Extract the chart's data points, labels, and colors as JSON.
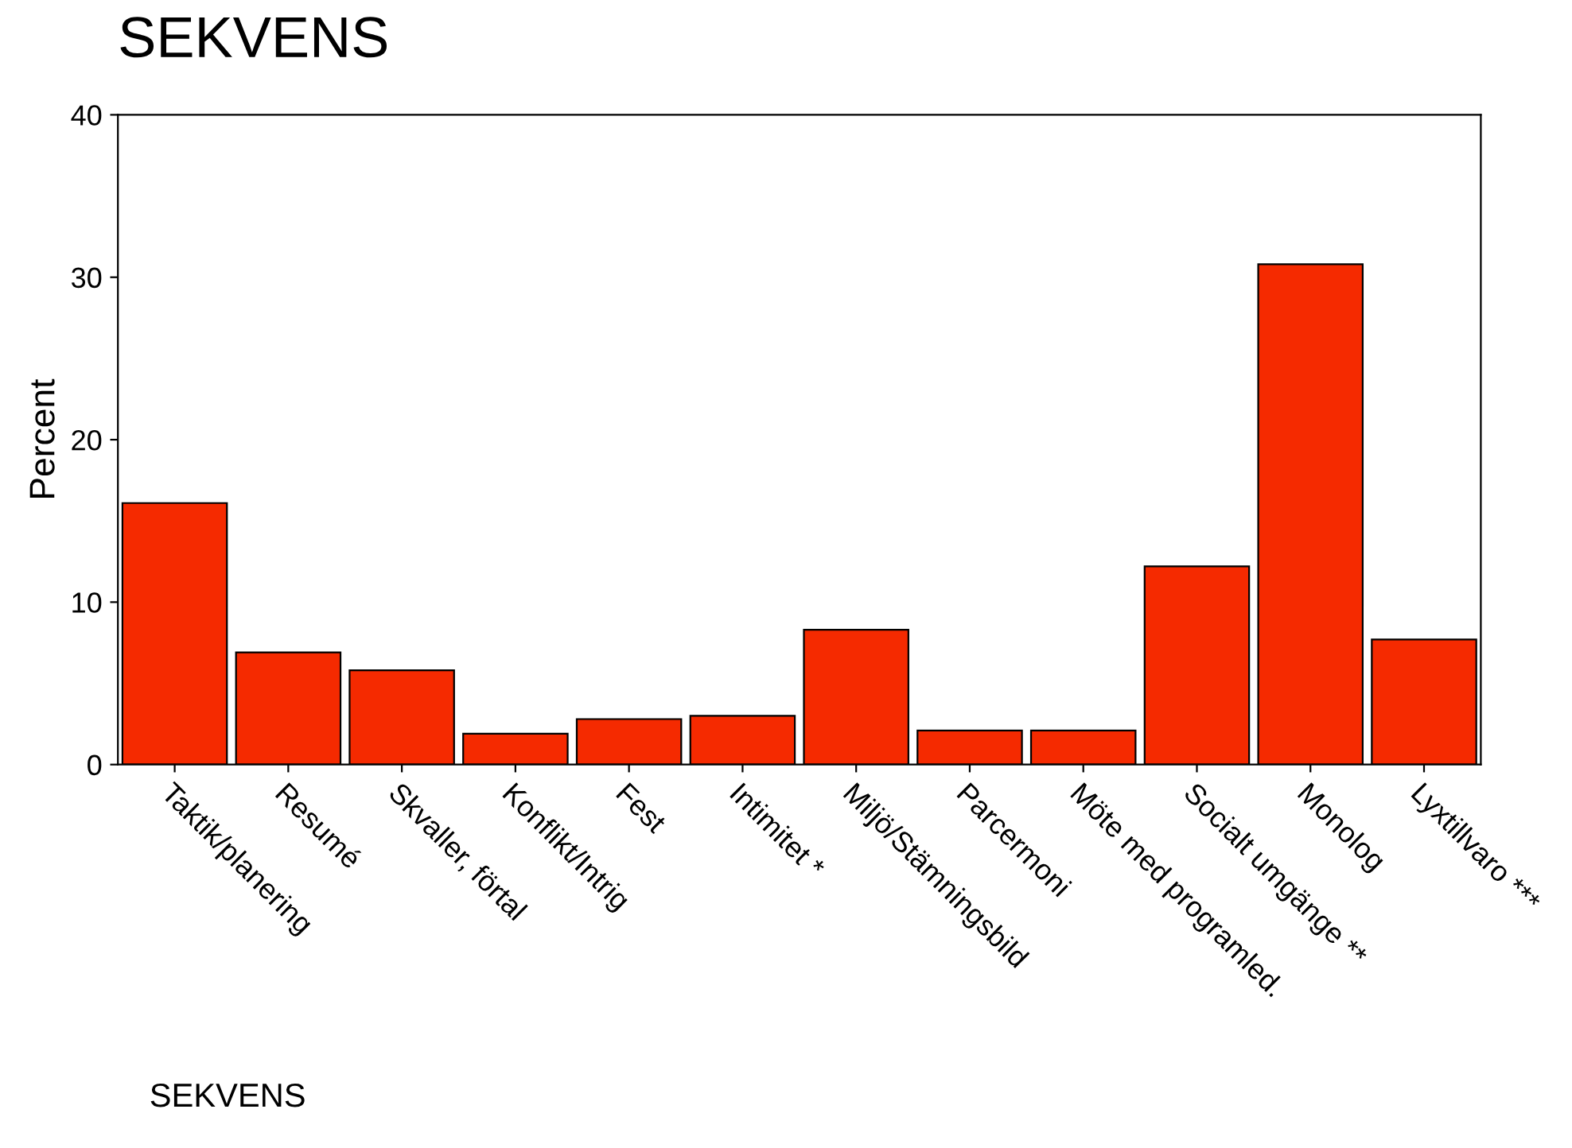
{
  "chart_data": {
    "type": "bar",
    "title": "SEKVENS",
    "xlabel": "SEKVENS",
    "ylabel": "Percent",
    "categories": [
      "Taktik/planering",
      "Resumé",
      "Skvaller, förtal",
      "Konflikt/Intrig",
      "Fest",
      "Intimitet *",
      "Miljö/Stämningsbild",
      "Parcermoni",
      "Möte med programled.",
      "Socialt umgänge **",
      "Monolog",
      "Lyxtillvaro ***"
    ],
    "values": [
      16.1,
      6.9,
      5.8,
      1.9,
      2.8,
      3.0,
      8.3,
      2.1,
      2.1,
      12.2,
      30.8,
      7.7
    ],
    "color": "#f52a00",
    "ylim": [
      0,
      40
    ],
    "yticks": [
      0,
      10,
      20,
      30,
      40
    ],
    "grid": false
  }
}
